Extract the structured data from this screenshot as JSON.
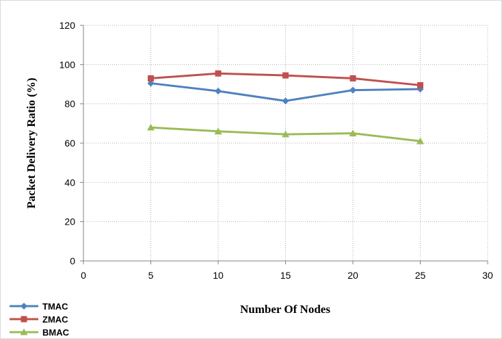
{
  "chart_data": {
    "type": "line",
    "xlabel": "Number Of Nodes",
    "ylabel": "Packet Delivery Ratio (%)",
    "xlim": [
      0,
      30
    ],
    "ylim": [
      0,
      120
    ],
    "x_ticks": [
      0,
      5,
      10,
      15,
      20,
      25,
      30
    ],
    "y_ticks": [
      0,
      20,
      40,
      60,
      80,
      100,
      120
    ],
    "grid": true,
    "legend_position": "bottom-left",
    "x": [
      5,
      10,
      15,
      20,
      25
    ],
    "series": [
      {
        "name": "TMAC",
        "marker": "diamond",
        "color": "#4f81bd",
        "values": [
          90.5,
          86.5,
          81.5,
          87,
          87.5
        ]
      },
      {
        "name": "ZMAC",
        "marker": "square",
        "color": "#c0504d",
        "values": [
          93,
          95.5,
          94.5,
          93,
          89.5
        ]
      },
      {
        "name": "BMAC",
        "marker": "triangle",
        "color": "#9bbb59",
        "values": [
          68,
          66,
          64.5,
          65,
          61
        ]
      }
    ]
  }
}
